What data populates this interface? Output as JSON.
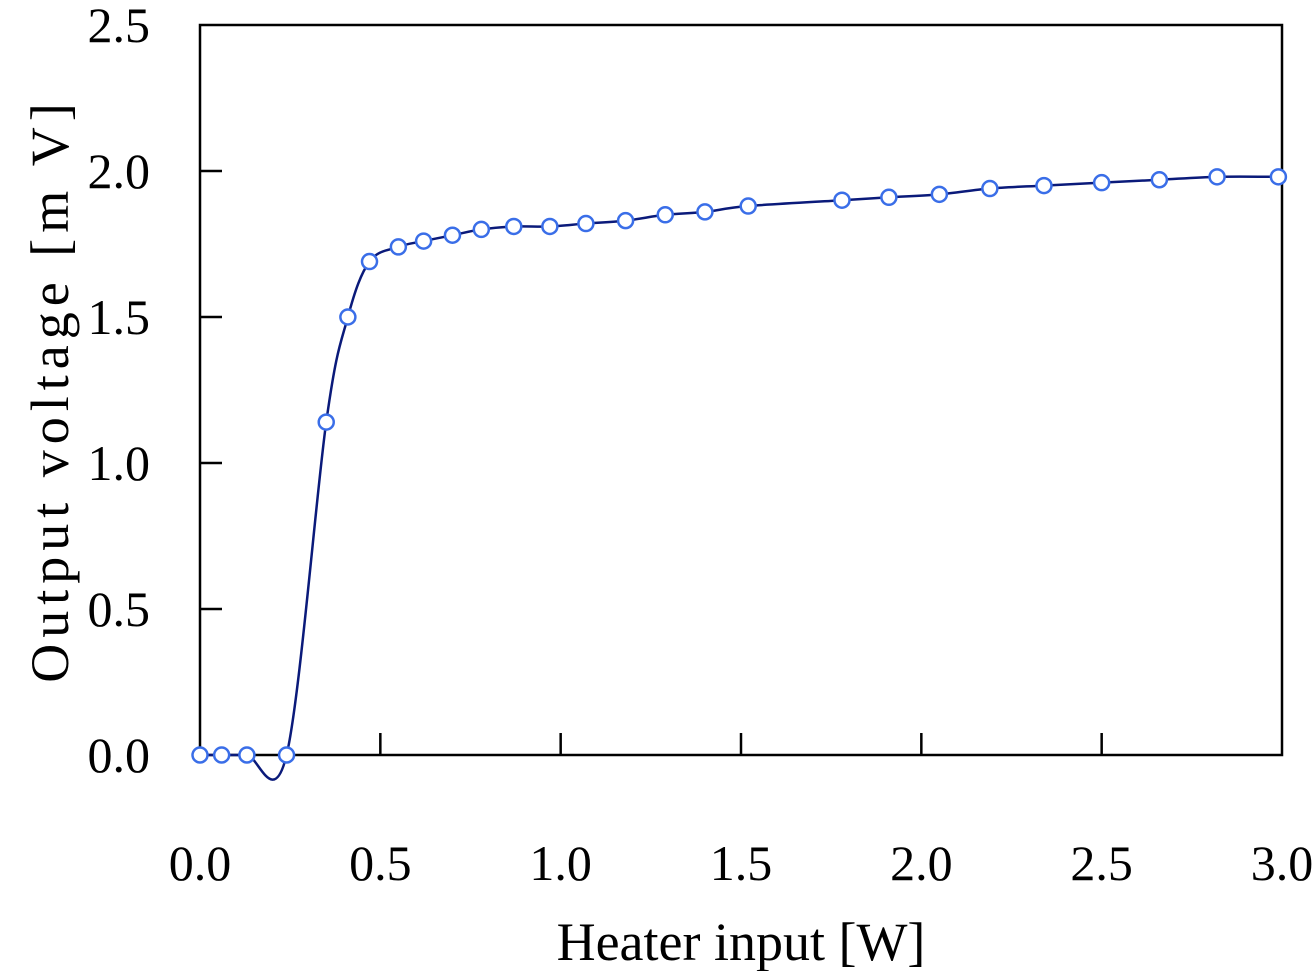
{
  "chart_data": {
    "type": "line",
    "xlabel": "Heater input [W]",
    "ylabel": "Output voltage [m V]",
    "xlim": [
      0,
      3.0
    ],
    "ylim": [
      0,
      2.5
    ],
    "xticks": [
      "0.0",
      "0.5",
      "1.0",
      "1.5",
      "2.0",
      "2.5",
      "3.0"
    ],
    "yticks": [
      "0.0",
      "0.5",
      "1.0",
      "1.5",
      "2.0",
      "2.5"
    ],
    "grid": false,
    "legend": "none",
    "colors": {
      "line": "#0a1a7a",
      "marker_edge": "#3a6ee8",
      "marker_fill": "#ffffff"
    },
    "series": [
      {
        "marker": "circle-open",
        "x": [
          0.0,
          0.06,
          0.13,
          0.24,
          0.35,
          0.41,
          0.47,
          0.55,
          0.62,
          0.7,
          0.78,
          0.87,
          0.97,
          1.07,
          1.18,
          1.29,
          1.4,
          1.52,
          1.78,
          1.91,
          2.05,
          2.19,
          2.34,
          2.5,
          2.66,
          2.82,
          2.99
        ],
        "y": [
          0.0,
          0.0,
          0.0,
          0.0,
          1.14,
          1.5,
          1.69,
          1.74,
          1.76,
          1.78,
          1.8,
          1.81,
          1.81,
          1.82,
          1.83,
          1.85,
          1.86,
          1.88,
          1.9,
          1.91,
          1.92,
          1.94,
          1.95,
          1.96,
          1.97,
          1.98,
          1.98
        ]
      }
    ]
  }
}
